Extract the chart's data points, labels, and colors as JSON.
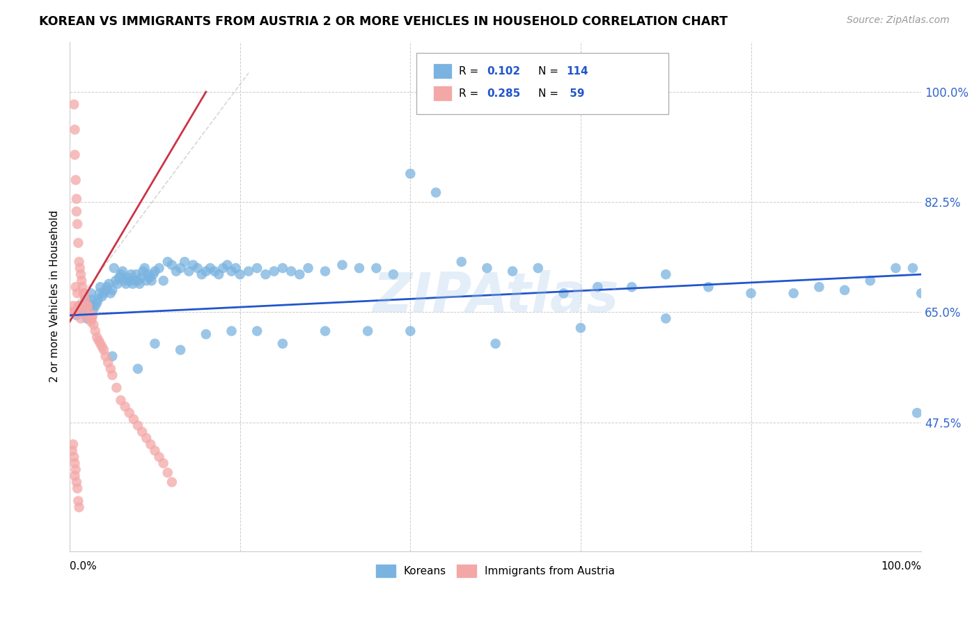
{
  "title": "KOREAN VS IMMIGRANTS FROM AUSTRIA 2 OR MORE VEHICLES IN HOUSEHOLD CORRELATION CHART",
  "source": "Source: ZipAtlas.com",
  "ylabel": "2 or more Vehicles in Household",
  "legend_label1": "Koreans",
  "legend_label2": "Immigrants from Austria",
  "blue_color": "#7ab3e0",
  "pink_color": "#f4a7a7",
  "trendline_blue": "#2255cc",
  "trendline_pink": "#cc3344",
  "watermark": "ZIPAtlas",
  "xlim": [
    0.0,
    1.0
  ],
  "ylim": [
    0.27,
    1.08
  ],
  "figsize": [
    14.06,
    8.92
  ],
  "dpi": 100,
  "blue_x": [
    0.008,
    0.012,
    0.015,
    0.018,
    0.02,
    0.022,
    0.024,
    0.025,
    0.026,
    0.028,
    0.03,
    0.032,
    0.033,
    0.035,
    0.036,
    0.038,
    0.04,
    0.042,
    0.044,
    0.046,
    0.048,
    0.05,
    0.052,
    0.054,
    0.056,
    0.058,
    0.06,
    0.062,
    0.064,
    0.066,
    0.068,
    0.07,
    0.072,
    0.074,
    0.076,
    0.078,
    0.08,
    0.082,
    0.084,
    0.086,
    0.088,
    0.09,
    0.092,
    0.094,
    0.096,
    0.098,
    0.1,
    0.105,
    0.11,
    0.115,
    0.12,
    0.125,
    0.13,
    0.135,
    0.14,
    0.145,
    0.15,
    0.155,
    0.16,
    0.165,
    0.17,
    0.175,
    0.18,
    0.185,
    0.19,
    0.195,
    0.2,
    0.21,
    0.22,
    0.23,
    0.24,
    0.25,
    0.26,
    0.27,
    0.28,
    0.3,
    0.32,
    0.34,
    0.36,
    0.38,
    0.4,
    0.43,
    0.46,
    0.49,
    0.52,
    0.55,
    0.58,
    0.62,
    0.66,
    0.7,
    0.75,
    0.8,
    0.85,
    0.88,
    0.91,
    0.94,
    0.97,
    0.99,
    0.995,
    1.0,
    0.05,
    0.08,
    0.1,
    0.13,
    0.16,
    0.19,
    0.22,
    0.25,
    0.3,
    0.35,
    0.4,
    0.5,
    0.6,
    0.7
  ],
  "blue_y": [
    0.645,
    0.66,
    0.65,
    0.67,
    0.64,
    0.665,
    0.66,
    0.68,
    0.67,
    0.655,
    0.66,
    0.665,
    0.67,
    0.68,
    0.69,
    0.675,
    0.68,
    0.685,
    0.69,
    0.695,
    0.68,
    0.685,
    0.72,
    0.7,
    0.695,
    0.705,
    0.71,
    0.715,
    0.7,
    0.695,
    0.705,
    0.7,
    0.71,
    0.695,
    0.7,
    0.71,
    0.7,
    0.695,
    0.705,
    0.715,
    0.72,
    0.7,
    0.71,
    0.705,
    0.7,
    0.71,
    0.715,
    0.72,
    0.7,
    0.73,
    0.725,
    0.715,
    0.72,
    0.73,
    0.715,
    0.725,
    0.72,
    0.71,
    0.715,
    0.72,
    0.715,
    0.71,
    0.72,
    0.725,
    0.715,
    0.72,
    0.71,
    0.715,
    0.72,
    0.71,
    0.715,
    0.72,
    0.715,
    0.71,
    0.72,
    0.715,
    0.725,
    0.72,
    0.72,
    0.71,
    0.87,
    0.84,
    0.73,
    0.72,
    0.715,
    0.72,
    0.68,
    0.69,
    0.69,
    0.71,
    0.69,
    0.68,
    0.68,
    0.69,
    0.685,
    0.7,
    0.72,
    0.72,
    0.49,
    0.68,
    0.58,
    0.56,
    0.6,
    0.59,
    0.615,
    0.62,
    0.62,
    0.6,
    0.62,
    0.62,
    0.62,
    0.6,
    0.625,
    0.64
  ],
  "pink_x": [
    0.003,
    0.004,
    0.005,
    0.005,
    0.006,
    0.006,
    0.007,
    0.007,
    0.008,
    0.008,
    0.009,
    0.009,
    0.01,
    0.01,
    0.011,
    0.011,
    0.012,
    0.012,
    0.013,
    0.013,
    0.014,
    0.015,
    0.016,
    0.017,
    0.018,
    0.019,
    0.02,
    0.021,
    0.022,
    0.023,
    0.024,
    0.025,
    0.026,
    0.027,
    0.028,
    0.03,
    0.032,
    0.034,
    0.036,
    0.038,
    0.04,
    0.042,
    0.045,
    0.048,
    0.05,
    0.055,
    0.06,
    0.065,
    0.07,
    0.075,
    0.08,
    0.085,
    0.09,
    0.095,
    0.1,
    0.105,
    0.11,
    0.115,
    0.12
  ],
  "pink_y": [
    0.65,
    0.66,
    0.98,
    0.65,
    0.94,
    0.9,
    0.86,
    0.69,
    0.83,
    0.81,
    0.79,
    0.68,
    0.76,
    0.66,
    0.73,
    0.65,
    0.72,
    0.66,
    0.71,
    0.64,
    0.7,
    0.69,
    0.68,
    0.68,
    0.67,
    0.66,
    0.66,
    0.66,
    0.65,
    0.645,
    0.64,
    0.635,
    0.64,
    0.645,
    0.63,
    0.62,
    0.61,
    0.605,
    0.6,
    0.595,
    0.59,
    0.58,
    0.57,
    0.56,
    0.55,
    0.53,
    0.51,
    0.5,
    0.49,
    0.48,
    0.47,
    0.46,
    0.45,
    0.44,
    0.43,
    0.42,
    0.41,
    0.395,
    0.38
  ],
  "pink_extra_x": [
    0.003,
    0.004,
    0.005,
    0.006,
    0.006,
    0.007,
    0.008,
    0.009,
    0.01,
    0.011
  ],
  "pink_extra_y": [
    0.43,
    0.44,
    0.42,
    0.41,
    0.39,
    0.4,
    0.38,
    0.37,
    0.35,
    0.34
  ]
}
